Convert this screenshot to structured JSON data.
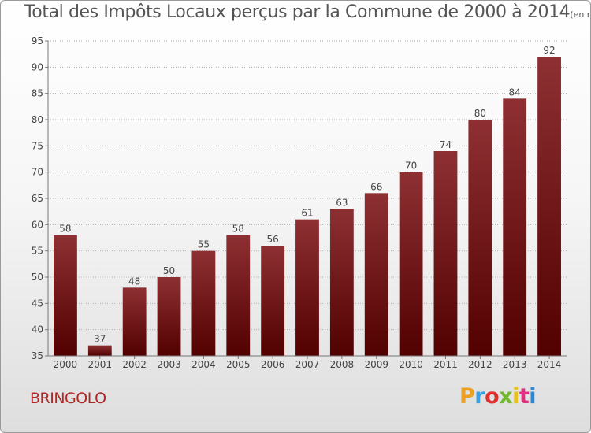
{
  "header": {
    "title": "Total des Impôts Locaux perçus par la Commune de 2000 à 2014",
    "unit": "(en milliers d'€)"
  },
  "footer": {
    "commune": "BRINGOLO",
    "logo_letters": [
      "P",
      "r",
      "o",
      "x",
      "i",
      "t",
      "i"
    ],
    "logo_colors": [
      "#f0a020",
      "#3aa0e0",
      "#e03030",
      "#70b830",
      "#e8c020",
      "#e03080",
      "#2a8ad8"
    ]
  },
  "chart_data": {
    "type": "bar",
    "title": "Total des Impôts Locaux perçus par la Commune de 2000 à 2014",
    "xlabel": "",
    "ylabel": "",
    "categories": [
      "2000",
      "2001",
      "2002",
      "2003",
      "2004",
      "2005",
      "2006",
      "2007",
      "2008",
      "2009",
      "2010",
      "2011",
      "2012",
      "2013",
      "2014"
    ],
    "values": [
      58,
      37,
      48,
      50,
      55,
      58,
      56,
      61,
      63,
      66,
      70,
      74,
      80,
      84,
      92
    ],
    "data_labels": [
      "58",
      "37",
      "48",
      "50",
      "55",
      "58",
      "56",
      "61",
      "63",
      "66",
      "70",
      "74",
      "80",
      "84",
      "92"
    ],
    "ylim": [
      35,
      95
    ],
    "yticks": [
      35,
      40,
      45,
      50,
      55,
      60,
      65,
      70,
      75,
      80,
      85,
      90,
      95
    ],
    "grid": true,
    "legend": "none",
    "colors": {
      "bar_top": "#8e3033",
      "bar_bottom": "#520000",
      "grid": "#b0b0b0",
      "axis": "#777777",
      "text": "#444444"
    }
  }
}
